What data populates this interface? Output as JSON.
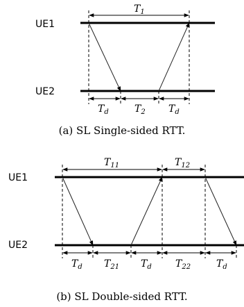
{
  "single_sided": {
    "ue1_label": "UE1",
    "ue2_label": "UE2",
    "t1": {
      "main": "T",
      "sub": "1"
    },
    "td_left": {
      "main": "T",
      "sub": "d"
    },
    "t2": {
      "main": "T",
      "sub": "2"
    },
    "td_right": {
      "main": "T",
      "sub": "d"
    },
    "caption": "(a) SL Single-sided RTT."
  },
  "double_sided": {
    "ue1_label": "UE1",
    "ue2_label": "UE2",
    "t11": {
      "main": "T",
      "sub": "11"
    },
    "t12": {
      "main": "T",
      "sub": "12"
    },
    "td_1": {
      "main": "T",
      "sub": "d"
    },
    "t21": {
      "main": "T",
      "sub": "21"
    },
    "td_2": {
      "main": "T",
      "sub": "d"
    },
    "t22": {
      "main": "T",
      "sub": "22"
    },
    "td_3": {
      "main": "T",
      "sub": "d"
    },
    "caption": "(b) SL Double-sided RTT."
  }
}
